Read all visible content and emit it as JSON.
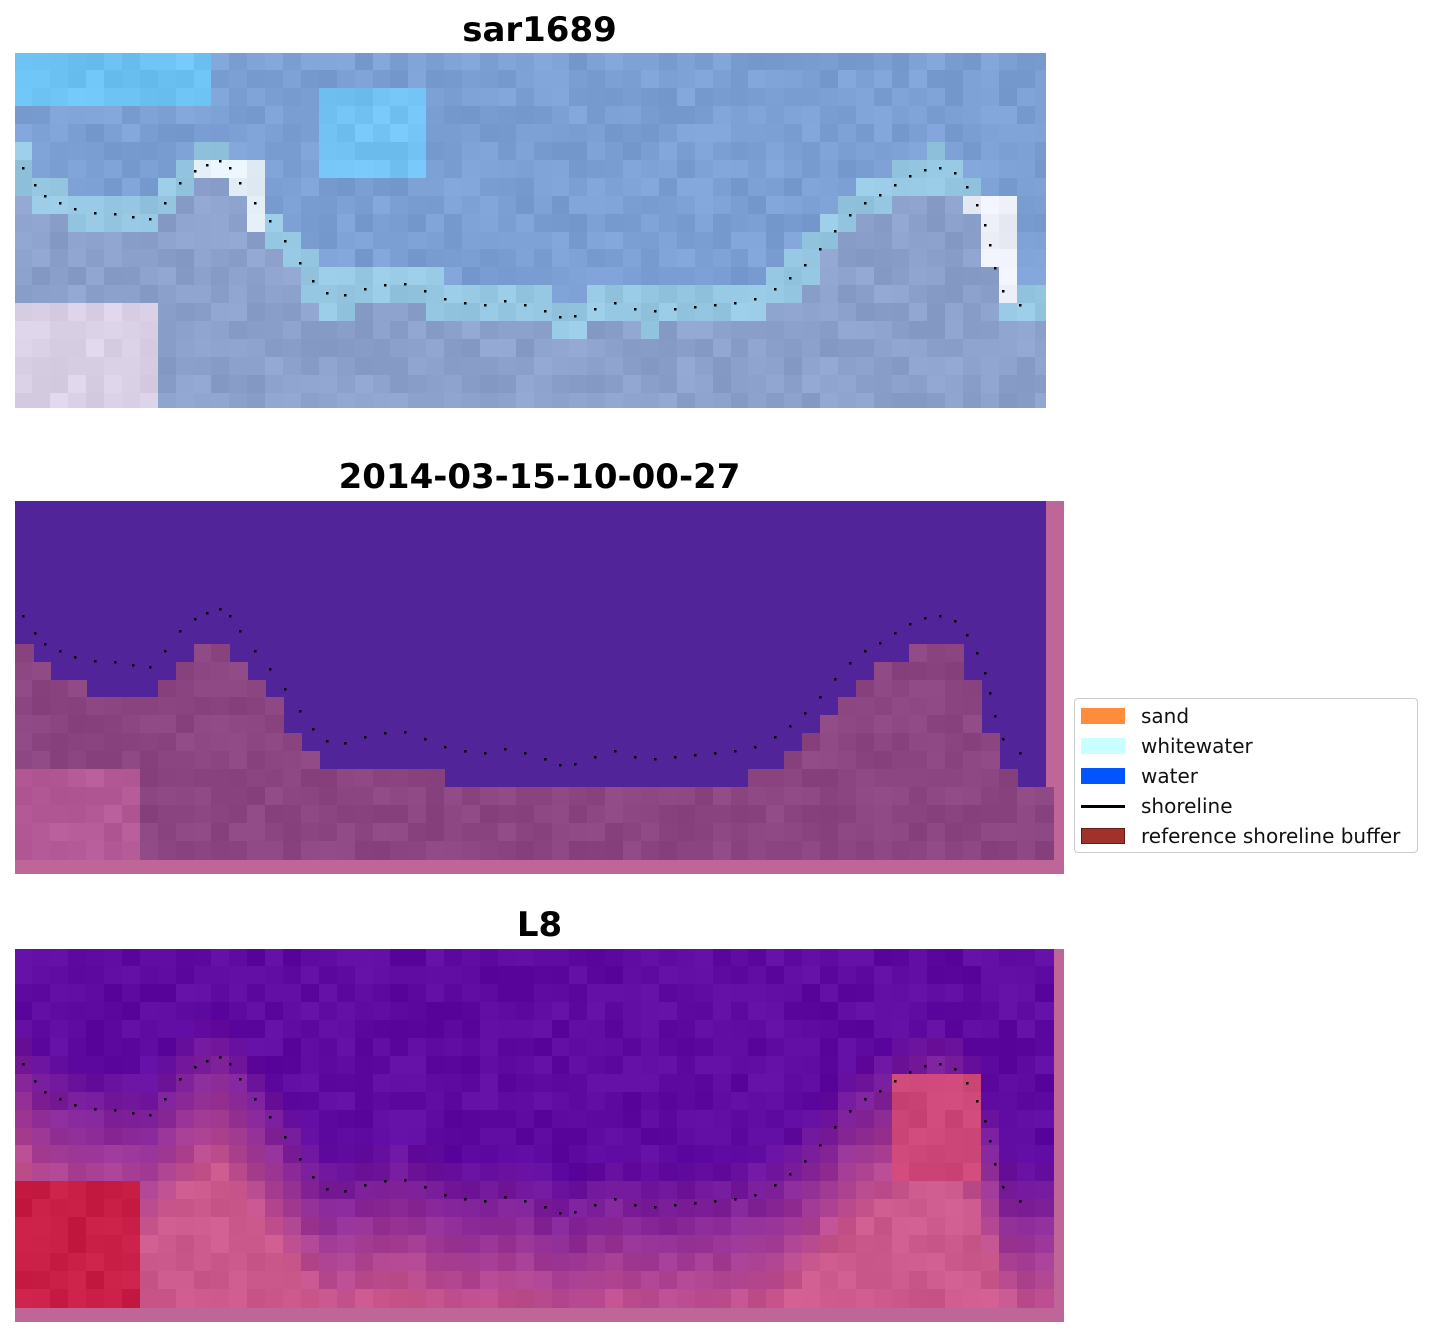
{
  "panels": [
    {
      "title": "sar1689",
      "kind": "rgb"
    },
    {
      "title": "2014-03-15-10-00-27",
      "kind": "classified"
    },
    {
      "title": "L8",
      "kind": "index"
    }
  ],
  "legend": {
    "items": [
      {
        "label": "sand",
        "color": "#ff8c3a",
        "type": "patch"
      },
      {
        "label": "whitewater",
        "color": "#c8ffff",
        "type": "patch"
      },
      {
        "label": "water",
        "color": "#0055ff",
        "type": "patch"
      },
      {
        "label": "shoreline",
        "color": "#000000",
        "type": "line"
      },
      {
        "label": "reference shoreline buffer",
        "color": "#a0322c",
        "type": "patch"
      }
    ]
  },
  "colors": {
    "water_class": "#52249a",
    "buffer_overlay": "#8c4583",
    "frame_pink": "#bf6699",
    "shoreline_dots": "#000000"
  }
}
